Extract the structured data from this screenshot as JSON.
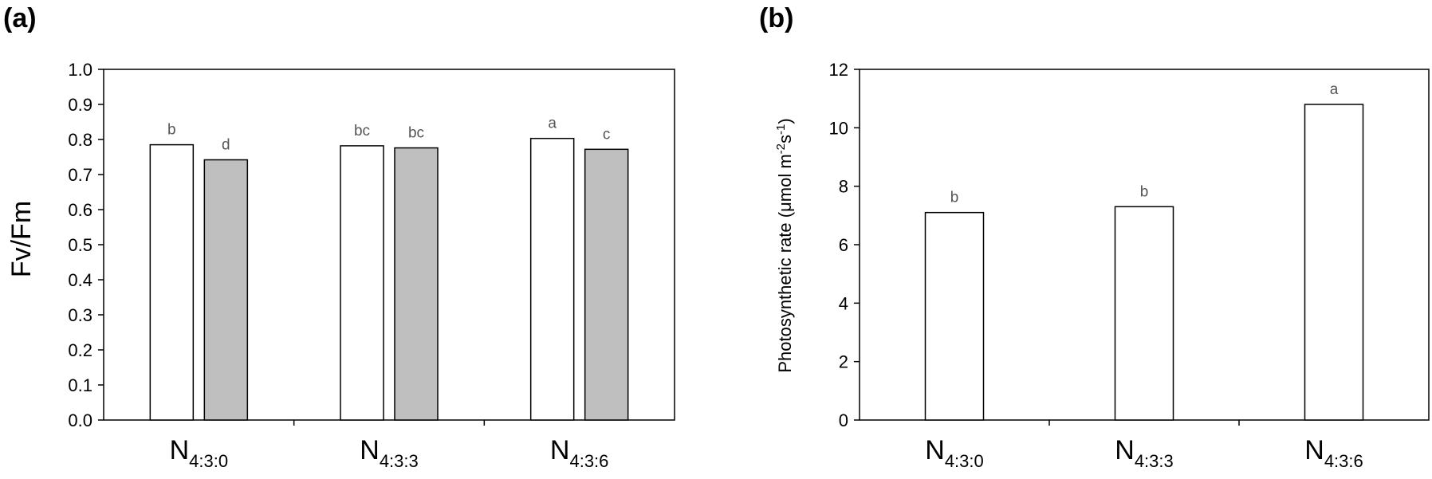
{
  "chart_data": [
    {
      "panel_label": "(a)",
      "type": "bar",
      "categories": [
        {
          "main": "N",
          "sub": "4:3:0"
        },
        {
          "main": "N",
          "sub": "4:3:3"
        },
        {
          "main": "N",
          "sub": "4:3:6"
        }
      ],
      "series": [
        {
          "values": [
            0.785,
            0.782,
            0.803
          ],
          "labels": [
            "b",
            "bc",
            "a"
          ],
          "color": "#ffffff"
        },
        {
          "values": [
            0.742,
            0.776,
            0.772
          ],
          "labels": [
            "d",
            "bc",
            "c"
          ],
          "color": "#bfbfbf"
        }
      ],
      "ylabel": "Fv/Fm",
      "ylim": [
        0,
        1.0
      ],
      "yticks": [
        "0.0",
        "0.1",
        "0.2",
        "0.3",
        "0.4",
        "0.5",
        "0.6",
        "0.7",
        "0.8",
        "0.9",
        "1.0"
      ],
      "grid": false
    },
    {
      "panel_label": "(b)",
      "type": "bar",
      "categories": [
        {
          "main": "N",
          "sub": "4:3:0"
        },
        {
          "main": "N",
          "sub": "4:3:3"
        },
        {
          "main": "N",
          "sub": "4:3:6"
        }
      ],
      "series": [
        {
          "values": [
            7.1,
            7.3,
            10.8
          ],
          "labels": [
            "b",
            "b",
            "a"
          ],
          "color": "#ffffff"
        }
      ],
      "ylabel": {
        "pre": "Photosynthetic rate (μmol m",
        "sup1": "-2",
        "mid": "s",
        "sup2": "-1",
        "post": ")"
      },
      "ylim": [
        0,
        12
      ],
      "yticks": [
        "0",
        "2",
        "4",
        "6",
        "8",
        "10",
        "12"
      ],
      "grid": false
    }
  ]
}
